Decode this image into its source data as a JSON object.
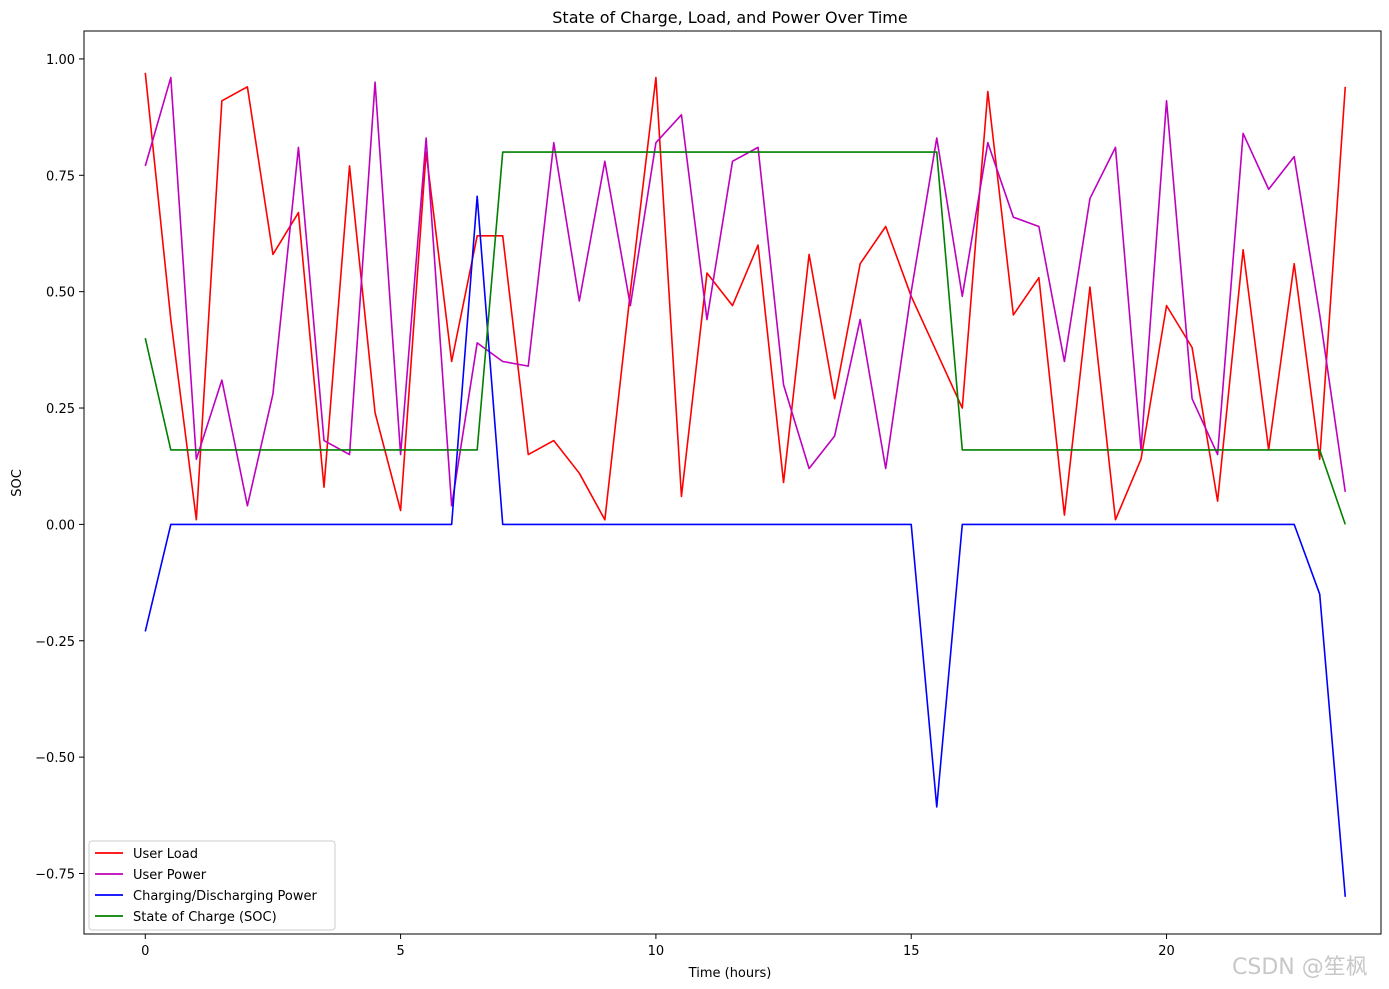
{
  "chart_data": {
    "type": "line",
    "title": "State of Charge, Load, and Power Over Time",
    "xlabel": "Time (hours)",
    "ylabel": "SOC",
    "xlim": [
      -1.2,
      24.2
    ],
    "ylim": [
      -0.88,
      1.06
    ],
    "xticks": [
      0,
      5,
      10,
      15,
      20
    ],
    "yticks": [
      -0.75,
      -0.5,
      -0.25,
      0.0,
      0.25,
      0.5,
      0.75,
      1.0
    ],
    "ytick_labels": [
      "−0.75",
      "−0.50",
      "−0.25",
      "0.00",
      "0.25",
      "0.50",
      "0.75",
      "1.00"
    ],
    "grid": false,
    "legend_position": "lower-left",
    "x": [
      0,
      0.5,
      1,
      1.5,
      2,
      2.5,
      3,
      3.5,
      4,
      4.5,
      5,
      5.5,
      6,
      6.5,
      7,
      7.5,
      8,
      8.5,
      9,
      9.5,
      10,
      10.5,
      11,
      11.5,
      12,
      12.5,
      13,
      13.5,
      14,
      14.5,
      15,
      15.5,
      16,
      16.5,
      17,
      17.5,
      18,
      18.5,
      19,
      19.5,
      20,
      20.5,
      21,
      21.5,
      22,
      22.5,
      23,
      23.5
    ],
    "series": [
      {
        "name": "User Load",
        "color": "#ff0000",
        "values": [
          0.97,
          0.44,
          0.01,
          0.91,
          0.94,
          0.58,
          0.67,
          0.08,
          0.77,
          0.24,
          0.03,
          0.8,
          0.35,
          0.62,
          0.62,
          0.15,
          0.18,
          0.11,
          0.01,
          0.5,
          0.96,
          0.06,
          0.54,
          0.47,
          0.6,
          0.09,
          0.58,
          0.27,
          0.56,
          0.64,
          0.49,
          0.37,
          0.25,
          0.93,
          0.45,
          0.53,
          0.02,
          0.51,
          0.01,
          0.14,
          0.47,
          0.38,
          0.05,
          0.59,
          0.16,
          0.56,
          0.14,
          0.94
        ]
      },
      {
        "name": "User Power",
        "color": "#bf00bf",
        "values": [
          0.77,
          0.96,
          0.14,
          0.31,
          0.04,
          0.28,
          0.81,
          0.18,
          0.15,
          0.95,
          0.15,
          0.83,
          0.04,
          0.39,
          0.35,
          0.34,
          0.82,
          0.48,
          0.78,
          0.47,
          0.82,
          0.88,
          0.44,
          0.78,
          0.81,
          0.3,
          0.12,
          0.19,
          0.44,
          0.12,
          0.5,
          0.83,
          0.49,
          0.82,
          0.66,
          0.64,
          0.35,
          0.7,
          0.81,
          0.16,
          0.91,
          0.27,
          0.15,
          0.84,
          0.72,
          0.79,
          0.45,
          0.07
        ]
      },
      {
        "name": "Charging/Discharging Power",
        "color": "#0000ff",
        "values": [
          -0.23,
          0.0,
          0.0,
          0.0,
          0.0,
          0.0,
          0.0,
          0.0,
          0.0,
          0.0,
          0.0,
          0.0,
          0.0,
          0.705,
          0.0,
          0.0,
          0.0,
          0.0,
          0.0,
          0.0,
          0.0,
          0.0,
          0.0,
          0.0,
          0.0,
          0.0,
          0.0,
          0.0,
          0.0,
          0.0,
          0.0,
          -0.607,
          0.0,
          0.0,
          0.0,
          0.0,
          0.0,
          0.0,
          0.0,
          0.0,
          0.0,
          0.0,
          0.0,
          0.0,
          0.0,
          0.0,
          -0.15,
          -0.8
        ]
      },
      {
        "name": "State of Charge (SOC)",
        "color": "#008000",
        "values": [
          0.4,
          0.16,
          0.16,
          0.16,
          0.16,
          0.16,
          0.16,
          0.16,
          0.16,
          0.16,
          0.16,
          0.16,
          0.16,
          0.16,
          0.8,
          0.8,
          0.8,
          0.8,
          0.8,
          0.8,
          0.8,
          0.8,
          0.8,
          0.8,
          0.8,
          0.8,
          0.8,
          0.8,
          0.8,
          0.8,
          0.8,
          0.8,
          0.16,
          0.16,
          0.16,
          0.16,
          0.16,
          0.16,
          0.16,
          0.16,
          0.16,
          0.16,
          0.16,
          0.16,
          0.16,
          0.16,
          0.16,
          0.0
        ]
      }
    ]
  },
  "watermark": "CSDN @笙枫"
}
